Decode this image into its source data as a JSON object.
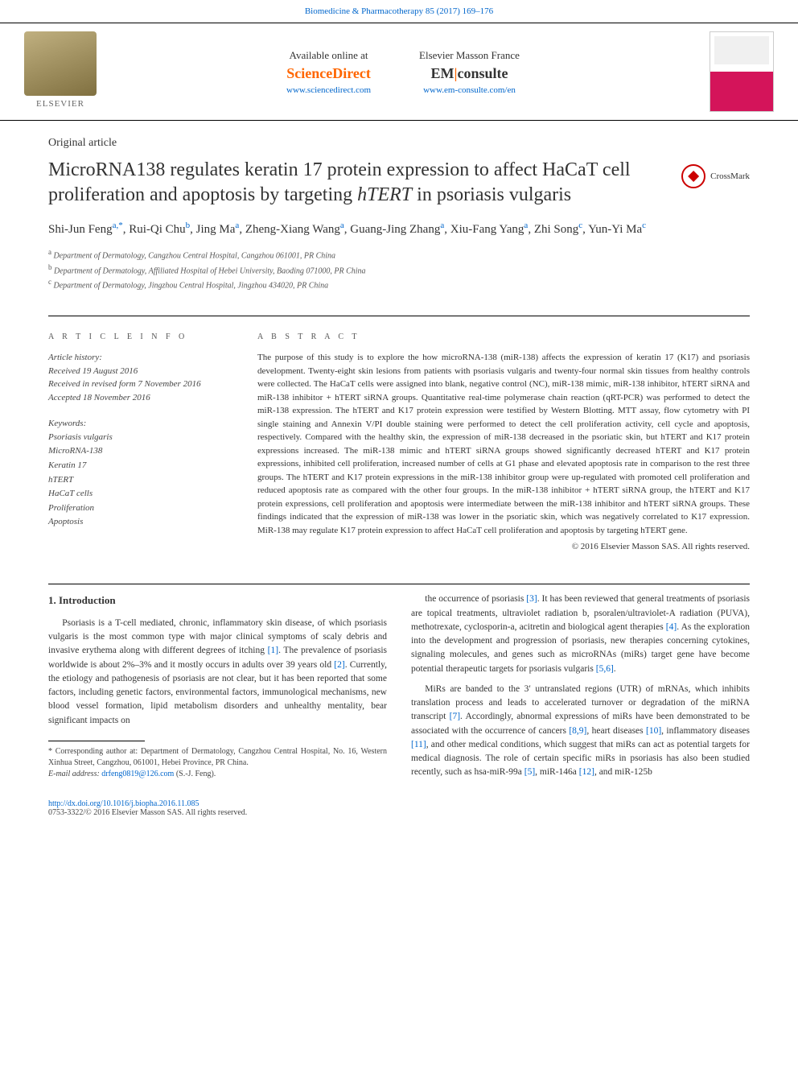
{
  "header": {
    "top_link": "Biomedicine & Pharmacotherapy 85 (2017) 169–176",
    "elsevier": "ELSEVIER",
    "left_block": {
      "label": "Available online at",
      "brand": "ScienceDirect",
      "url": "www.sciencedirect.com"
    },
    "right_block": {
      "label": "Elsevier Masson France",
      "brand_prefix": "EM",
      "brand_suffix": "consulte",
      "url": "www.em-consulte.com/en"
    }
  },
  "article": {
    "type": "Original article",
    "title_part1": "MicroRNA138 regulates keratin 17 protein expression to affect HaCaT cell proliferation and apoptosis by targeting ",
    "title_italic": "hTERT",
    "title_part2": " in psoriasis vulgaris",
    "crossmark": "CrossMark",
    "authors_html": "Shi-Jun Feng<sup>a,*</sup>, Rui-Qi Chu<sup>b</sup>, Jing Ma<sup>a</sup>, Zheng-Xiang Wang<sup>a</sup>, Guang-Jing Zhang<sup>a</sup>, Xiu-Fang Yang<sup>a</sup>, Zhi Song<sup>c</sup>, Yun-Yi Ma<sup>c</sup>",
    "affiliations": [
      {
        "sup": "a",
        "text": "Department of Dermatology, Cangzhou Central Hospital, Cangzhou 061001, PR China"
      },
      {
        "sup": "b",
        "text": "Department of Dermatology, Affiliated Hospital of Hebei University, Baoding 071000, PR China"
      },
      {
        "sup": "c",
        "text": "Department of Dermatology, Jingzhou Central Hospital, Jingzhou 434020, PR China"
      }
    ]
  },
  "info": {
    "heading": "A R T I C L E   I N F O",
    "history_label": "Article history:",
    "history": [
      "Received 19 August 2016",
      "Received in revised form 7 November 2016",
      "Accepted 18 November 2016"
    ],
    "keywords_label": "Keywords:",
    "keywords": [
      "Psoriasis vulgaris",
      "MicroRNA-138",
      "Keratin 17",
      "hTERT",
      "HaCaT cells",
      "Proliferation",
      "Apoptosis"
    ],
    "keywords_italic_idx": 3
  },
  "abstract": {
    "heading": "A B S T R A C T",
    "text": "The purpose of this study is to explore the how microRNA-138 (miR-138) affects the expression of keratin 17 (K17) and psoriasis development. Twenty-eight skin lesions from patients with psoriasis vulgaris and twenty-four normal skin tissues from healthy controls were collected. The HaCaT cells were assigned into blank, negative control (NC), miR-138 mimic, miR-138 inhibitor, hTERT siRNA and miR-138 inhibitor + hTERT siRNA groups. Quantitative real-time polymerase chain reaction (qRT-PCR) was performed to detect the miR-138 expression. The hTERT and K17 protein expression were testified by Western Blotting. MTT assay, flow cytometry with PI single staining and Annexin V/PI double staining were performed to detect the cell proliferation activity, cell cycle and apoptosis, respectively. Compared with the healthy skin, the expression of miR-138 decreased in the psoriatic skin, but hTERT and K17 protein expressions increased. The miR-138 mimic and hTERT siRNA groups showed significantly decreased hTERT and K17 protein expressions, inhibited cell proliferation, increased number of cells at G1 phase and elevated apoptosis rate in comparison to the rest three groups. The hTERT and K17 protein expressions in the miR-138 inhibitor group were up-regulated with promoted cell proliferation and reduced apoptosis rate as compared with the other four groups. In the miR-138 inhibitor + hTERT siRNA group, the hTERT and K17 protein expressions, cell proliferation and apoptosis were intermediate between the miR-138 inhibitor and hTERT siRNA groups. These findings indicated that the expression of miR-138 was lower in the psoriatic skin, which was negatively correlated to K17 expression. MiR-138 may regulate K17 protein expression to affect HaCaT cell proliferation and apoptosis by targeting hTERT gene.",
    "copyright": "© 2016 Elsevier Masson SAS. All rights reserved."
  },
  "body": {
    "heading": "1. Introduction",
    "para1": "Psoriasis is a T-cell mediated, chronic, inflammatory skin disease, of which psoriasis vulgaris is the most common type with major clinical symptoms of scaly debris and invasive erythema along with different degrees of itching [1]. The prevalence of psoriasis worldwide is about 2%–3% and it mostly occurs in adults over 39 years old [2]. Currently, the etiology and pathogenesis of psoriasis are not clear, but it has been reported that some factors, including genetic factors, environmental factors, immunological mechanisms, new blood vessel formation, lipid metabolism disorders and unhealthy mentality, bear significant impacts on",
    "para2": "the occurrence of psoriasis [3]. It has been reviewed that general treatments of psoriasis are topical treatments, ultraviolet radiation b, psoralen/ultraviolet-A radiation (PUVA), methotrexate, cyclosporin-a, acitretin and biological agent therapies [4]. As the exploration into the development and progression of psoriasis, new therapies concerning cytokines, signaling molecules, and genes such as microRNAs (miRs) target gene have become potential therapeutic targets for psoriasis vulgaris [5,6].",
    "para3": "MiRs are banded to the 3′ untranslated regions (UTR) of mRNAs, which inhibits translation process and leads to accelerated turnover or degradation of the miRNA transcript [7]. Accordingly, abnormal expressions of miRs have been demonstrated to be associated with the occurrence of cancers [8,9], heart diseases [10], inflammatory diseases [11], and other medical conditions, which suggest that miRs can act as potential targets for medical diagnosis. The role of certain specific miRs in psoriasis has also been studied recently, such as hsa-miR-99a [5], miR-146a [12], and miR-125b"
  },
  "footnote": {
    "corr": "* Corresponding author at: Department of Dermatology, Cangzhou Central Hospital, No. 16, Western Xinhua Street, Cangzhou, 061001, Hebei Province, PR China.",
    "email_label": "E-mail address:",
    "email": "drfeng0819@126.com",
    "email_author": "(S.-J. Feng)."
  },
  "footer": {
    "doi": "http://dx.doi.org/10.1016/j.biopha.2016.11.085",
    "issn": "0753-3322/© 2016 Elsevier Masson SAS. All rights reserved."
  },
  "colors": {
    "link": "#0066cc",
    "accent": "#ff6600"
  }
}
